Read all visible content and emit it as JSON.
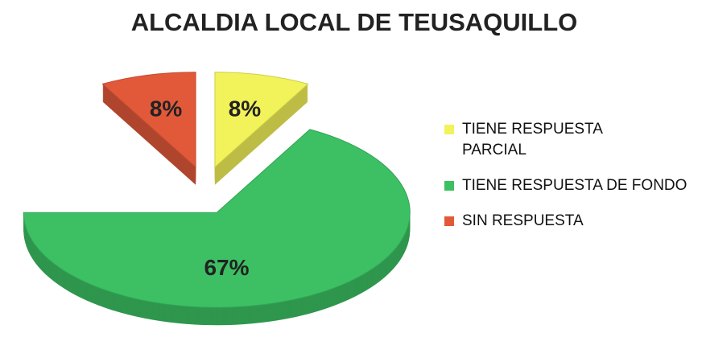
{
  "chart_data": {
    "type": "pie",
    "title": "ALCALDIA LOCAL DE TEUSAQUILLO",
    "categories": [
      "TIENE RESPUESTA PARCIAL",
      "TIENE RESPUESTA DE FONDO",
      "SIN RESPUESTA"
    ],
    "values": [
      8,
      67,
      8
    ],
    "value_labels": [
      "8%",
      "67%",
      "8%"
    ],
    "colors": [
      "#f2f25a",
      "#3cc063",
      "#e2593a"
    ],
    "legend": "right"
  }
}
